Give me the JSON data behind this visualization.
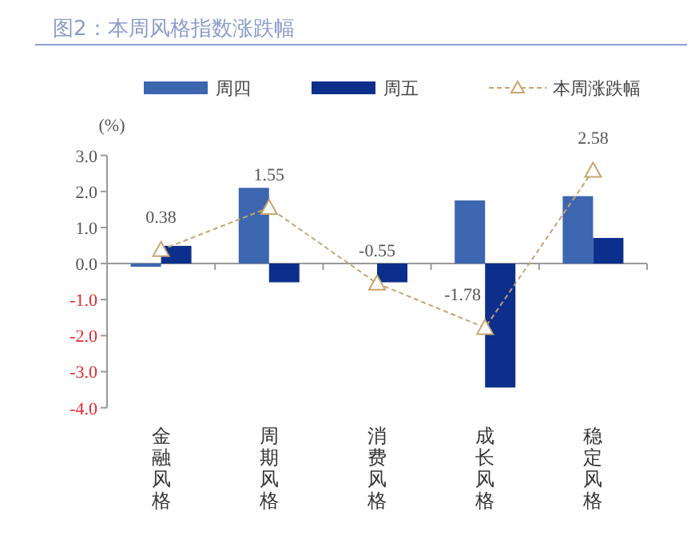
{
  "chart_data": {
    "type": "bar",
    "title": "图2：本周风格指数涨跌幅",
    "ylabel": "(%)",
    "categories": [
      "金融风格",
      "周期风格",
      "消费风格",
      "成长风格",
      "稳定风格"
    ],
    "series": [
      {
        "name": "周四",
        "color": "#3d66b0",
        "values": [
          -0.09,
          2.1,
          0,
          1.75,
          1.87
        ]
      },
      {
        "name": "周五",
        "color": "#0c2f8c",
        "values": [
          0.49,
          -0.52,
          -0.52,
          -3.44,
          0.71
        ]
      },
      {
        "name": "本周涨跌幅",
        "type": "line",
        "color": "#c8a46e",
        "values": [
          0.38,
          1.55,
          -0.55,
          -1.78,
          2.58
        ],
        "value_labels": [
          "0.38",
          "1.55",
          "-0.55",
          "-1.78",
          "2.58"
        ],
        "marker": "triangle",
        "line_style": "dashed"
      }
    ],
    "ylim": [
      -4,
      3
    ],
    "yticks": [
      {
        "value": -4,
        "label": "-4.0"
      },
      {
        "value": -3,
        "label": "-3.0"
      },
      {
        "value": -2,
        "label": "-2.0"
      },
      {
        "value": -1,
        "label": "-1.0"
      },
      {
        "value": 0,
        "label": "0.0"
      },
      {
        "value": 1,
        "label": "1.0"
      },
      {
        "value": 2,
        "label": "2.0"
      },
      {
        "value": 3,
        "label": "3.0"
      }
    ],
    "legend": "top"
  }
}
